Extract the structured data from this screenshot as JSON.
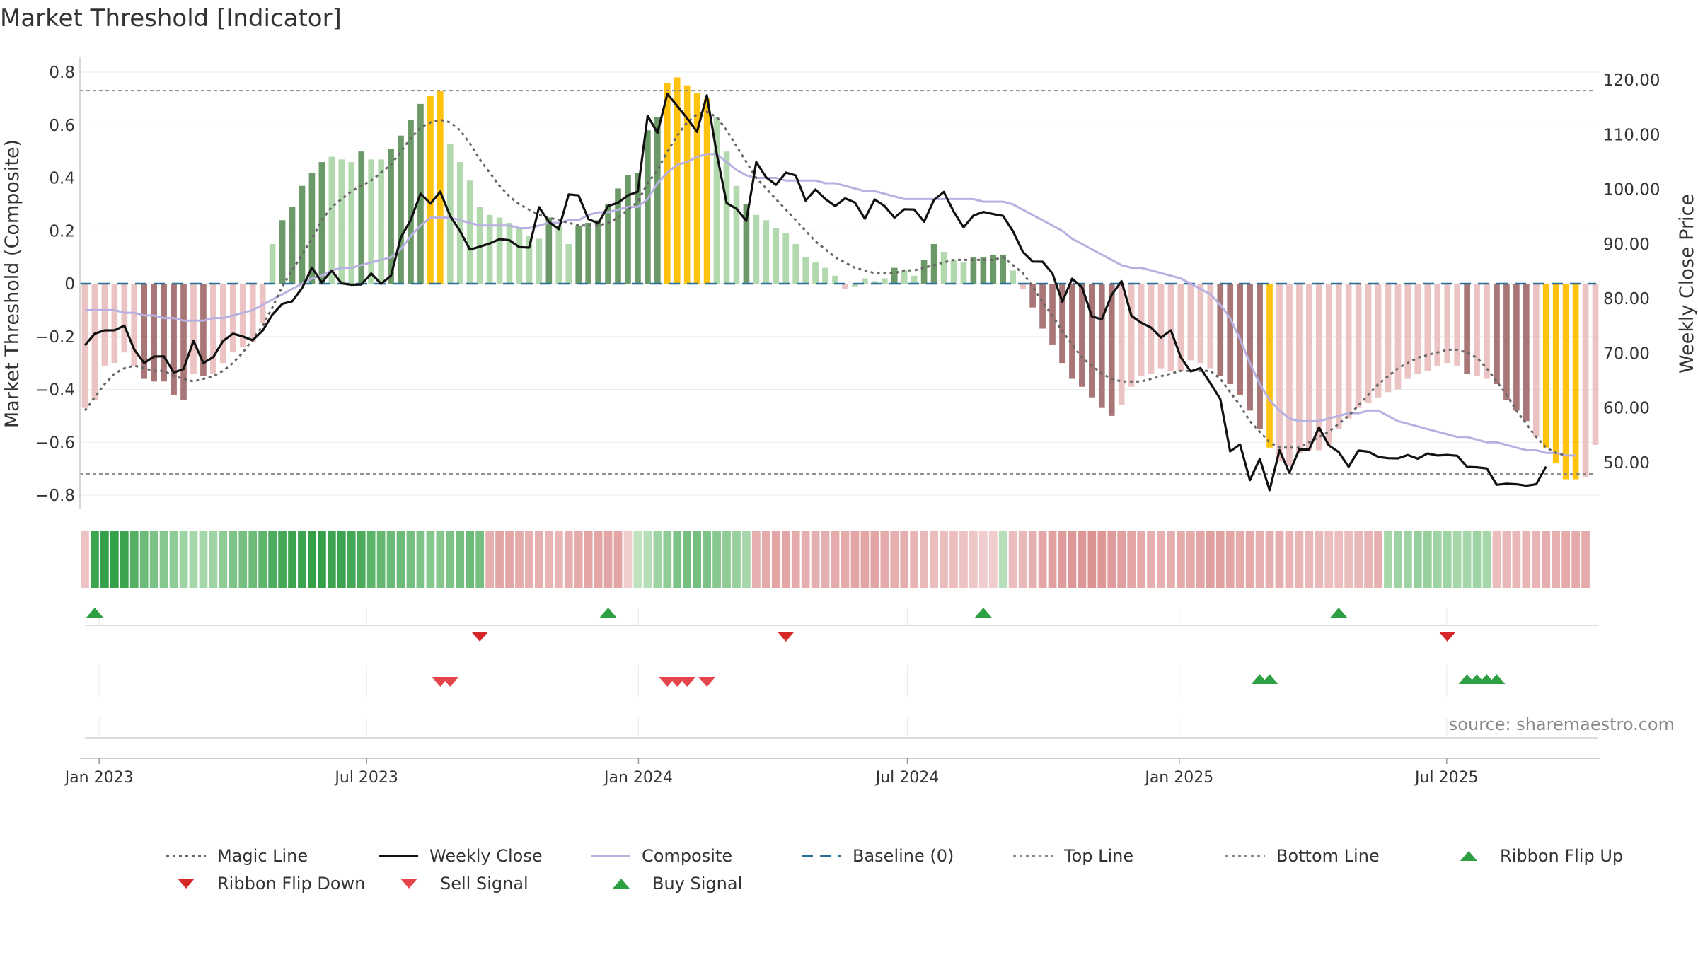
{
  "title": "Market Threshold [Indicator]",
  "source": "source: sharemaestro.com",
  "chart_data": {
    "type": "bar",
    "title": "Market Threshold [Indicator]",
    "ylabel": "Market Threshold (Composite)",
    "y2label": "Weekly Close Price",
    "ylim": [
      -0.85,
      0.85
    ],
    "y2lim": [
      43.5,
      126.2
    ],
    "yticks": [
      0.8,
      0.6,
      0.4,
      0.2,
      0,
      -0.2,
      -0.4,
      -0.6,
      -0.8
    ],
    "ytick_labels": [
      "0.8",
      "0.6",
      "0.4",
      "0.2",
      "0",
      "−0.2",
      "−0.4",
      "−0.6",
      "−0.8"
    ],
    "y2ticks": [
      120,
      110,
      100,
      90,
      80,
      70,
      60,
      50
    ],
    "y2tick_labels": [
      "120.00",
      "110.00",
      "100.00",
      "90.00",
      "80.00",
      "70.00",
      "60.00",
      "50.00"
    ],
    "x_start": "2022-12-19",
    "x_end": "2025-10-13",
    "xtick_dates": [
      "2023-01-01",
      "2023-07-01",
      "2024-01-01",
      "2024-07-01",
      "2025-01-01",
      "2025-07-01"
    ],
    "xtick_labels": [
      "Jan 2023",
      "Jul 2023",
      "Jan 2024",
      "Jul 2024",
      "Jan 2025",
      "Jul 2025"
    ],
    "top_line": 0.73,
    "bottom_line": -0.72,
    "baseline": 0,
    "composite": [
      -0.47,
      -0.44,
      -0.31,
      -0.3,
      -0.26,
      -0.31,
      -0.36,
      -0.37,
      -0.37,
      -0.42,
      -0.44,
      -0.34,
      -0.35,
      -0.34,
      -0.3,
      -0.26,
      -0.24,
      -0.22,
      -0.15,
      0.15,
      0.24,
      0.29,
      0.37,
      0.42,
      0.46,
      0.48,
      0.47,
      0.46,
      0.5,
      0.47,
      0.47,
      0.51,
      0.56,
      0.62,
      0.68,
      0.71,
      0.73,
      0.53,
      0.46,
      0.39,
      0.29,
      0.26,
      0.25,
      0.23,
      0.21,
      0.18,
      0.17,
      0.25,
      0.22,
      0.15,
      0.22,
      0.23,
      0.24,
      0.3,
      0.36,
      0.41,
      0.42,
      0.58,
      0.63,
      0.76,
      0.78,
      0.75,
      0.72,
      0.7,
      0.63,
      0.5,
      0.37,
      0.3,
      0.26,
      0.24,
      0.21,
      0.19,
      0.15,
      0.1,
      0.08,
      0.06,
      0.03,
      -0.02,
      -0.01,
      0.02,
      0.01,
      0.02,
      0.06,
      0.05,
      0.03,
      0.09,
      0.15,
      0.12,
      0.09,
      0.08,
      0.1,
      0.1,
      0.11,
      0.11,
      0.05,
      -0.02,
      -0.09,
      -0.17,
      -0.23,
      -0.3,
      -0.36,
      -0.39,
      -0.43,
      -0.47,
      -0.5,
      -0.46,
      -0.39,
      -0.35,
      -0.34,
      -0.32,
      -0.33,
      -0.33,
      -0.29,
      -0.3,
      -0.32,
      -0.35,
      -0.38,
      -0.42,
      -0.48,
      -0.55,
      -0.62,
      -0.67,
      -0.69,
      -0.64,
      -0.63,
      -0.63,
      -0.61,
      -0.55,
      -0.51,
      -0.47,
      -0.45,
      -0.43,
      -0.41,
      -0.4,
      -0.36,
      -0.34,
      -0.33,
      -0.31,
      -0.3,
      -0.31,
      -0.34,
      -0.35,
      -0.36,
      -0.38,
      -0.44,
      -0.48,
      -0.52,
      -0.58,
      -0.62,
      -0.68,
      -0.74,
      -0.74,
      -0.73,
      -0.61
    ],
    "bar_classes": [
      "npl",
      "npl",
      "npl",
      "npl",
      "npl",
      "npl",
      "nd",
      "nd",
      "nd",
      "nd",
      "nd",
      "npl",
      "nd",
      "npl",
      "npl",
      "npl",
      "npl",
      "npl",
      "npl",
      "ppl",
      "pd",
      "pd",
      "pd",
      "pd",
      "pd",
      "ppl",
      "ppl",
      "ppl",
      "pd",
      "ppl",
      "ppl",
      "pd",
      "pd",
      "pd",
      "pd",
      "y",
      "y",
      "ppl",
      "ppl",
      "ppl",
      "ppl",
      "ppl",
      "ppl",
      "ppl",
      "ppl",
      "ppl",
      "ppl",
      "pd",
      "ppl",
      "ppl",
      "pd",
      "pd",
      "pd",
      "pd",
      "pd",
      "pd",
      "pd",
      "pd",
      "pd",
      "y",
      "y",
      "y",
      "y",
      "y",
      "ppl",
      "ppl",
      "ppl",
      "pd",
      "ppl",
      "ppl",
      "ppl",
      "ppl",
      "ppl",
      "ppl",
      "ppl",
      "ppl",
      "ppl",
      "npl",
      "ppl",
      "ppl",
      "ppl",
      "ppl",
      "pd",
      "ppl",
      "ppl",
      "pd",
      "pd",
      "ppl",
      "ppl",
      "ppl",
      "pd",
      "pd",
      "pd",
      "pd",
      "ppl",
      "npl",
      "nd",
      "nd",
      "nd",
      "nd",
      "nd",
      "nd",
      "nd",
      "nd",
      "nd",
      "npl",
      "npl",
      "npl",
      "npl",
      "npl",
      "npl",
      "npl",
      "npl",
      "npl",
      "npl",
      "nd",
      "nd",
      "nd",
      "nd",
      "nd",
      "y",
      "npl",
      "npl",
      "npl",
      "npl",
      "npl",
      "npl",
      "npl",
      "npl",
      "npl",
      "npl",
      "npl",
      "npl",
      "npl",
      "npl",
      "npl",
      "npl",
      "npl",
      "npl",
      "npl",
      "nd",
      "npl",
      "npl",
      "nd",
      "nd",
      "nd",
      "nd",
      "npl",
      "y",
      "y",
      "y",
      "y",
      "npl"
    ],
    "weekly_close": [
      71.47,
      73.59,
      74.2,
      74.21,
      75.06,
      70.66,
      68.23,
      69.41,
      69.45,
      66.49,
      67.14,
      72.28,
      68.22,
      69.3,
      72.27,
      73.59,
      73.07,
      72.38,
      74.15,
      77.11,
      79.05,
      79.51,
      81.95,
      85.67,
      82.94,
      85.13,
      82.79,
      82.54,
      82.59,
      84.6,
      82.72,
      84.18,
      91.19,
      94.37,
      99.19,
      97.38,
      99.56,
      95.09,
      92.34,
      88.96,
      89.5,
      90.09,
      90.89,
      90.68,
      89.42,
      89.33,
      96.72,
      94.05,
      92.71,
      99.07,
      98.88,
      94.55,
      93.77,
      96.95,
      97.53,
      98.88,
      99.55,
      113.44,
      110.33,
      117.46,
      115.23,
      112.98,
      110.51,
      117.19,
      106.47,
      97.48,
      96.44,
      94.24,
      104.98,
      102.19,
      100.82,
      103.06,
      102.53,
      97.93,
      99.96,
      98.22,
      96.93,
      98.35,
      97.57,
      94.62,
      98.15,
      96.93,
      94.81,
      96.35,
      96.29,
      94.07,
      98.04,
      99.52,
      95.91,
      93.04,
      95.2,
      95.86,
      95.47,
      95.13,
      92.33,
      88.55,
      86.77,
      86.75,
      84.62,
      79.42,
      83.65,
      82.06,
      76.75,
      76.22,
      80.71,
      83.19,
      76.86,
      75.59,
      74.69,
      72.87,
      74.2,
      69.26,
      66.69,
      67.3,
      64.52,
      61.63,
      52.06,
      53.32,
      46.81,
      50.68,
      44.95,
      52.3,
      48.14,
      52.41,
      52.39,
      56.45,
      53.15,
      51.93,
      49.24,
      52.22,
      52.0,
      51.05,
      50.81,
      50.78,
      51.4,
      50.73,
      51.68,
      51.31,
      51.41,
      51.26,
      49.21,
      49.15,
      48.94,
      45.95,
      46.13,
      46.04,
      45.78,
      46.04,
      49.27
    ],
    "magic_line": [
      -0.48,
      -0.43,
      -0.38,
      -0.34,
      -0.32,
      -0.31,
      -0.32,
      -0.33,
      -0.33,
      -0.35,
      -0.36,
      -0.37,
      -0.36,
      -0.35,
      -0.33,
      -0.3,
      -0.26,
      -0.21,
      -0.16,
      -0.09,
      -0.01,
      0.05,
      0.11,
      0.17,
      0.24,
      0.29,
      0.32,
      0.35,
      0.37,
      0.39,
      0.42,
      0.45,
      0.5,
      0.55,
      0.59,
      0.61,
      0.62,
      0.61,
      0.58,
      0.53,
      0.47,
      0.42,
      0.37,
      0.33,
      0.3,
      0.28,
      0.26,
      0.25,
      0.24,
      0.23,
      0.22,
      0.22,
      0.22,
      0.23,
      0.25,
      0.28,
      0.31,
      0.38,
      0.43,
      0.5,
      0.56,
      0.61,
      0.64,
      0.65,
      0.63,
      0.58,
      0.52,
      0.46,
      0.4,
      0.36,
      0.32,
      0.28,
      0.24,
      0.2,
      0.16,
      0.13,
      0.1,
      0.08,
      0.06,
      0.05,
      0.04,
      0.04,
      0.04,
      0.05,
      0.05,
      0.06,
      0.07,
      0.08,
      0.09,
      0.09,
      0.09,
      0.09,
      0.09,
      0.1,
      0.07,
      0.04,
      -0.01,
      -0.07,
      -0.12,
      -0.18,
      -0.23,
      -0.28,
      -0.31,
      -0.34,
      -0.36,
      -0.37,
      -0.37,
      -0.37,
      -0.36,
      -0.35,
      -0.34,
      -0.33,
      -0.33,
      -0.33,
      -0.33,
      -0.36,
      -0.41,
      -0.46,
      -0.52,
      -0.56,
      -0.6,
      -0.62,
      -0.62,
      -0.62,
      -0.6,
      -0.58,
      -0.56,
      -0.53,
      -0.5,
      -0.46,
      -0.42,
      -0.38,
      -0.35,
      -0.32,
      -0.3,
      -0.28,
      -0.27,
      -0.26,
      -0.25,
      -0.25,
      -0.26,
      -0.28,
      -0.32,
      -0.37,
      -0.42,
      -0.48,
      -0.53,
      -0.58,
      -0.62,
      -0.64,
      -0.65
    ],
    "composite_line": [
      -0.1,
      -0.1,
      -0.1,
      -0.1,
      -0.11,
      -0.11,
      -0.12,
      -0.12,
      -0.13,
      -0.13,
      -0.14,
      -0.14,
      -0.14,
      -0.13,
      -0.13,
      -0.12,
      -0.11,
      -0.1,
      -0.08,
      -0.06,
      -0.04,
      -0.02,
      0.0,
      0.02,
      0.03,
      0.05,
      0.06,
      0.06,
      0.07,
      0.08,
      0.09,
      0.1,
      0.13,
      0.18,
      0.22,
      0.25,
      0.25,
      0.25,
      0.24,
      0.23,
      0.22,
      0.22,
      0.22,
      0.22,
      0.21,
      0.21,
      0.22,
      0.23,
      0.23,
      0.24,
      0.24,
      0.26,
      0.27,
      0.27,
      0.28,
      0.29,
      0.29,
      0.32,
      0.38,
      0.42,
      0.45,
      0.46,
      0.48,
      0.49,
      0.49,
      0.46,
      0.43,
      0.41,
      0.4,
      0.4,
      0.4,
      0.39,
      0.39,
      0.39,
      0.39,
      0.38,
      0.38,
      0.37,
      0.36,
      0.35,
      0.35,
      0.34,
      0.33,
      0.32,
      0.32,
      0.32,
      0.32,
      0.32,
      0.32,
      0.32,
      0.32,
      0.31,
      0.31,
      0.31,
      0.3,
      0.28,
      0.26,
      0.24,
      0.22,
      0.2,
      0.17,
      0.15,
      0.13,
      0.11,
      0.09,
      0.07,
      0.06,
      0.06,
      0.05,
      0.04,
      0.03,
      0.02,
      0.0,
      -0.02,
      -0.04,
      -0.08,
      -0.13,
      -0.21,
      -0.3,
      -0.38,
      -0.44,
      -0.48,
      -0.51,
      -0.52,
      -0.52,
      -0.52,
      -0.51,
      -0.5,
      -0.49,
      -0.49,
      -0.48,
      -0.48,
      -0.5,
      -0.52,
      -0.53,
      -0.54,
      -0.55,
      -0.56,
      -0.57,
      -0.58,
      -0.58,
      -0.59,
      -0.6,
      -0.6,
      -0.61,
      -0.62,
      -0.63,
      -0.63,
      -0.64,
      -0.64,
      -0.65,
      -0.65
    ],
    "ribbon": [
      -0.25,
      0.95,
      1.0,
      1.0,
      0.95,
      0.8,
      0.65,
      0.55,
      0.5,
      0.45,
      0.35,
      0.3,
      0.3,
      0.35,
      0.45,
      0.55,
      0.6,
      0.65,
      0.75,
      0.85,
      0.9,
      0.95,
      0.95,
      1.0,
      1.0,
      0.95,
      0.95,
      0.9,
      0.85,
      0.75,
      0.7,
      0.65,
      0.65,
      0.6,
      0.55,
      0.5,
      0.5,
      0.55,
      0.6,
      0.65,
      0.6,
      -0.45,
      -0.55,
      -0.55,
      -0.5,
      -0.45,
      -0.45,
      -0.4,
      -0.4,
      -0.45,
      -0.5,
      -0.55,
      -0.55,
      -0.55,
      -0.55,
      -0.15,
      0.15,
      0.2,
      0.35,
      0.45,
      0.55,
      0.6,
      0.6,
      0.55,
      0.5,
      0.45,
      0.4,
      0.3,
      -0.45,
      -0.5,
      -0.55,
      -0.55,
      -0.5,
      -0.45,
      -0.45,
      -0.45,
      -0.5,
      -0.5,
      -0.55,
      -0.55,
      -0.55,
      -0.5,
      -0.45,
      -0.45,
      -0.4,
      -0.35,
      -0.3,
      -0.3,
      -0.3,
      -0.25,
      -0.2,
      -0.15,
      -0.1,
      0.2,
      -0.3,
      -0.35,
      -0.45,
      -0.55,
      -0.6,
      -0.65,
      -0.7,
      -0.7,
      -0.75,
      -0.7,
      -0.65,
      -0.6,
      -0.55,
      -0.5,
      -0.45,
      -0.45,
      -0.45,
      -0.5,
      -0.5,
      -0.55,
      -0.6,
      -0.6,
      -0.55,
      -0.5,
      -0.5,
      -0.45,
      -0.45,
      -0.45,
      -0.4,
      -0.4,
      -0.35,
      -0.35,
      -0.3,
      -0.3,
      -0.3,
      -0.35,
      -0.4,
      -0.45,
      0.3,
      0.35,
      0.35,
      0.4,
      0.4,
      0.35,
      0.35,
      0.3,
      0.3,
      0.35,
      0.3,
      -0.3,
      -0.35,
      -0.35,
      -0.4,
      -0.4,
      -0.45,
      -0.45,
      -0.5,
      -0.5,
      -0.5
    ],
    "ribbon_flip_up": [
      "2022-12-26",
      "2023-12-25",
      "2024-09-16",
      "2025-05-26"
    ],
    "ribbon_flip_down": [
      "2023-09-25",
      "2024-04-29",
      "2025-08-11"
    ],
    "sell_signal": [
      "2023-08-28",
      "2023-09-04",
      "2024-02-05",
      "2024-02-12",
      "2024-02-19",
      "2024-03-04"
    ],
    "buy_signal": [
      "2025-03-31",
      "2025-04-07",
      "2025-08-25",
      "2025-09-01",
      "2025-09-08",
      "2025-09-15"
    ],
    "legend": [
      {
        "label": "Magic Line",
        "kind": "dotted-line",
        "color": "#666666"
      },
      {
        "label": "Weekly Close",
        "kind": "solid-line",
        "color": "#111111"
      },
      {
        "label": "Composite",
        "kind": "solid-line",
        "color": "#b8b0e0"
      },
      {
        "label": "Baseline (0)",
        "kind": "dashed-line",
        "color": "#2a6f97"
      },
      {
        "label": "Top Line",
        "kind": "dotted-line",
        "color": "#888888"
      },
      {
        "label": "Bottom Line",
        "kind": "dotted-line",
        "color": "#888888"
      },
      {
        "label": "Ribbon Flip Up",
        "kind": "triangle-up",
        "color": "#2ca043"
      },
      {
        "label": "Ribbon Flip Down",
        "kind": "triangle-down",
        "color": "#d62728"
      },
      {
        "label": "Sell Signal",
        "kind": "triangle-down",
        "color": "#e5444b"
      },
      {
        "label": "Buy Signal",
        "kind": "triangle-up",
        "color": "#2ca043"
      }
    ],
    "legend_placement": "bottom",
    "grid": true,
    "colors": {
      "positive_dark": "#6b9a68",
      "positive_light": "#b2d9ad",
      "negative_dark": "#a87676",
      "negative_light": "#ebc3c3",
      "extreme": "#ffc20e",
      "magic_line": "#666666",
      "weekly_close": "#111111",
      "composite_line": "#b8b0e0",
      "baseline": "#2a6f97",
      "threshold": "#888888",
      "up_marker": "#2ca043",
      "down_marker": "#d62728",
      "sell_marker": "#e5444b"
    }
  }
}
